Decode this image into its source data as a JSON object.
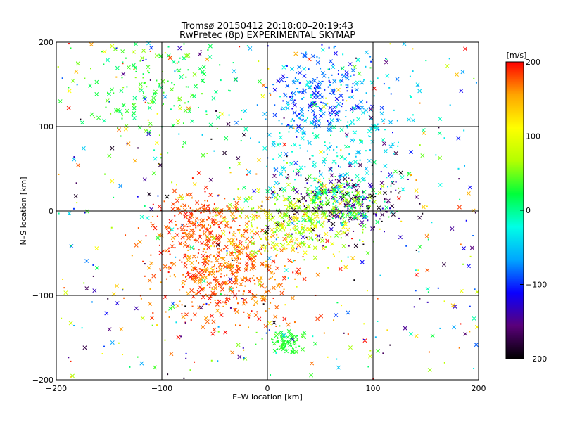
{
  "chart_data": {
    "type": "scatter",
    "title": "Tromsø 20150412 20:18:00–20:19:43",
    "subtitle": "RwPretec (8p) EXPERIMENTAL SKYMAP",
    "xlabel": "E–W location [km]",
    "ylabel": "N–S location [km]",
    "xlim": [
      -200,
      200
    ],
    "ylim": [
      -200,
      200
    ],
    "xticks": [
      -200,
      -100,
      0,
      100,
      200
    ],
    "yticks": [
      -200,
      -100,
      0,
      100,
      200
    ],
    "xtick_labels": [
      "−200",
      "−100",
      "0",
      "100",
      "200"
    ],
    "ytick_labels": [
      "−200",
      "−100",
      "0",
      "100",
      "200"
    ],
    "grid": true,
    "marker_types": [
      "x",
      "dot"
    ],
    "colorbar": {
      "label": "[m/s]",
      "range": [
        -200,
        200
      ],
      "ticks": [
        200,
        100,
        0,
        -100,
        -200
      ],
      "tick_labels": [
        "200",
        "100",
        "0",
        "−100",
        "−200"
      ],
      "stops": [
        "#000000",
        "#5a007a",
        "#0a00ff",
        "#00a6ff",
        "#00ffe6",
        "#00ff3a",
        "#b4ff00",
        "#ffff00",
        "#ffa500",
        "#ff0000"
      ]
    },
    "clusters": [
      {
        "name": "southwest-positive",
        "center": [
          -40,
          -70
        ],
        "spread": [
          35,
          30
        ],
        "velocity": [
          150,
          200
        ],
        "count": 550
      },
      {
        "name": "west-positive",
        "center": [
          -60,
          -10
        ],
        "spread": [
          20,
          15
        ],
        "velocity": [
          160,
          200
        ],
        "count": 180
      },
      {
        "name": "center-mixed",
        "center": [
          20,
          -20
        ],
        "spread": [
          30,
          20
        ],
        "velocity": [
          40,
          140
        ],
        "count": 280
      },
      {
        "name": "east-negative",
        "center": [
          70,
          10
        ],
        "spread": [
          30,
          20
        ],
        "velocity": [
          -200,
          -120
        ],
        "count": 220
      },
      {
        "name": "east-center-green",
        "center": [
          60,
          10
        ],
        "spread": [
          25,
          15
        ],
        "velocity": [
          0,
          80
        ],
        "count": 180
      },
      {
        "name": "north-blue",
        "center": [
          50,
          140
        ],
        "spread": [
          25,
          25
        ],
        "velocity": [
          -120,
          -60
        ],
        "count": 220
      },
      {
        "name": "northeast-cyan",
        "center": [
          70,
          80
        ],
        "spread": [
          40,
          45
        ],
        "velocity": [
          -60,
          0
        ],
        "count": 260
      },
      {
        "name": "northwest-green",
        "center": [
          -100,
          150
        ],
        "spread": [
          40,
          40
        ],
        "velocity": [
          0,
          60
        ],
        "count": 200
      },
      {
        "name": "south-green-patch",
        "center": [
          20,
          -155
        ],
        "spread": [
          10,
          6
        ],
        "velocity": [
          20,
          40
        ],
        "count": 80
      },
      {
        "name": "background",
        "center": [
          0,
          0
        ],
        "spread": [
          200,
          200
        ],
        "velocity": [
          -200,
          200
        ],
        "count": 500
      }
    ]
  }
}
